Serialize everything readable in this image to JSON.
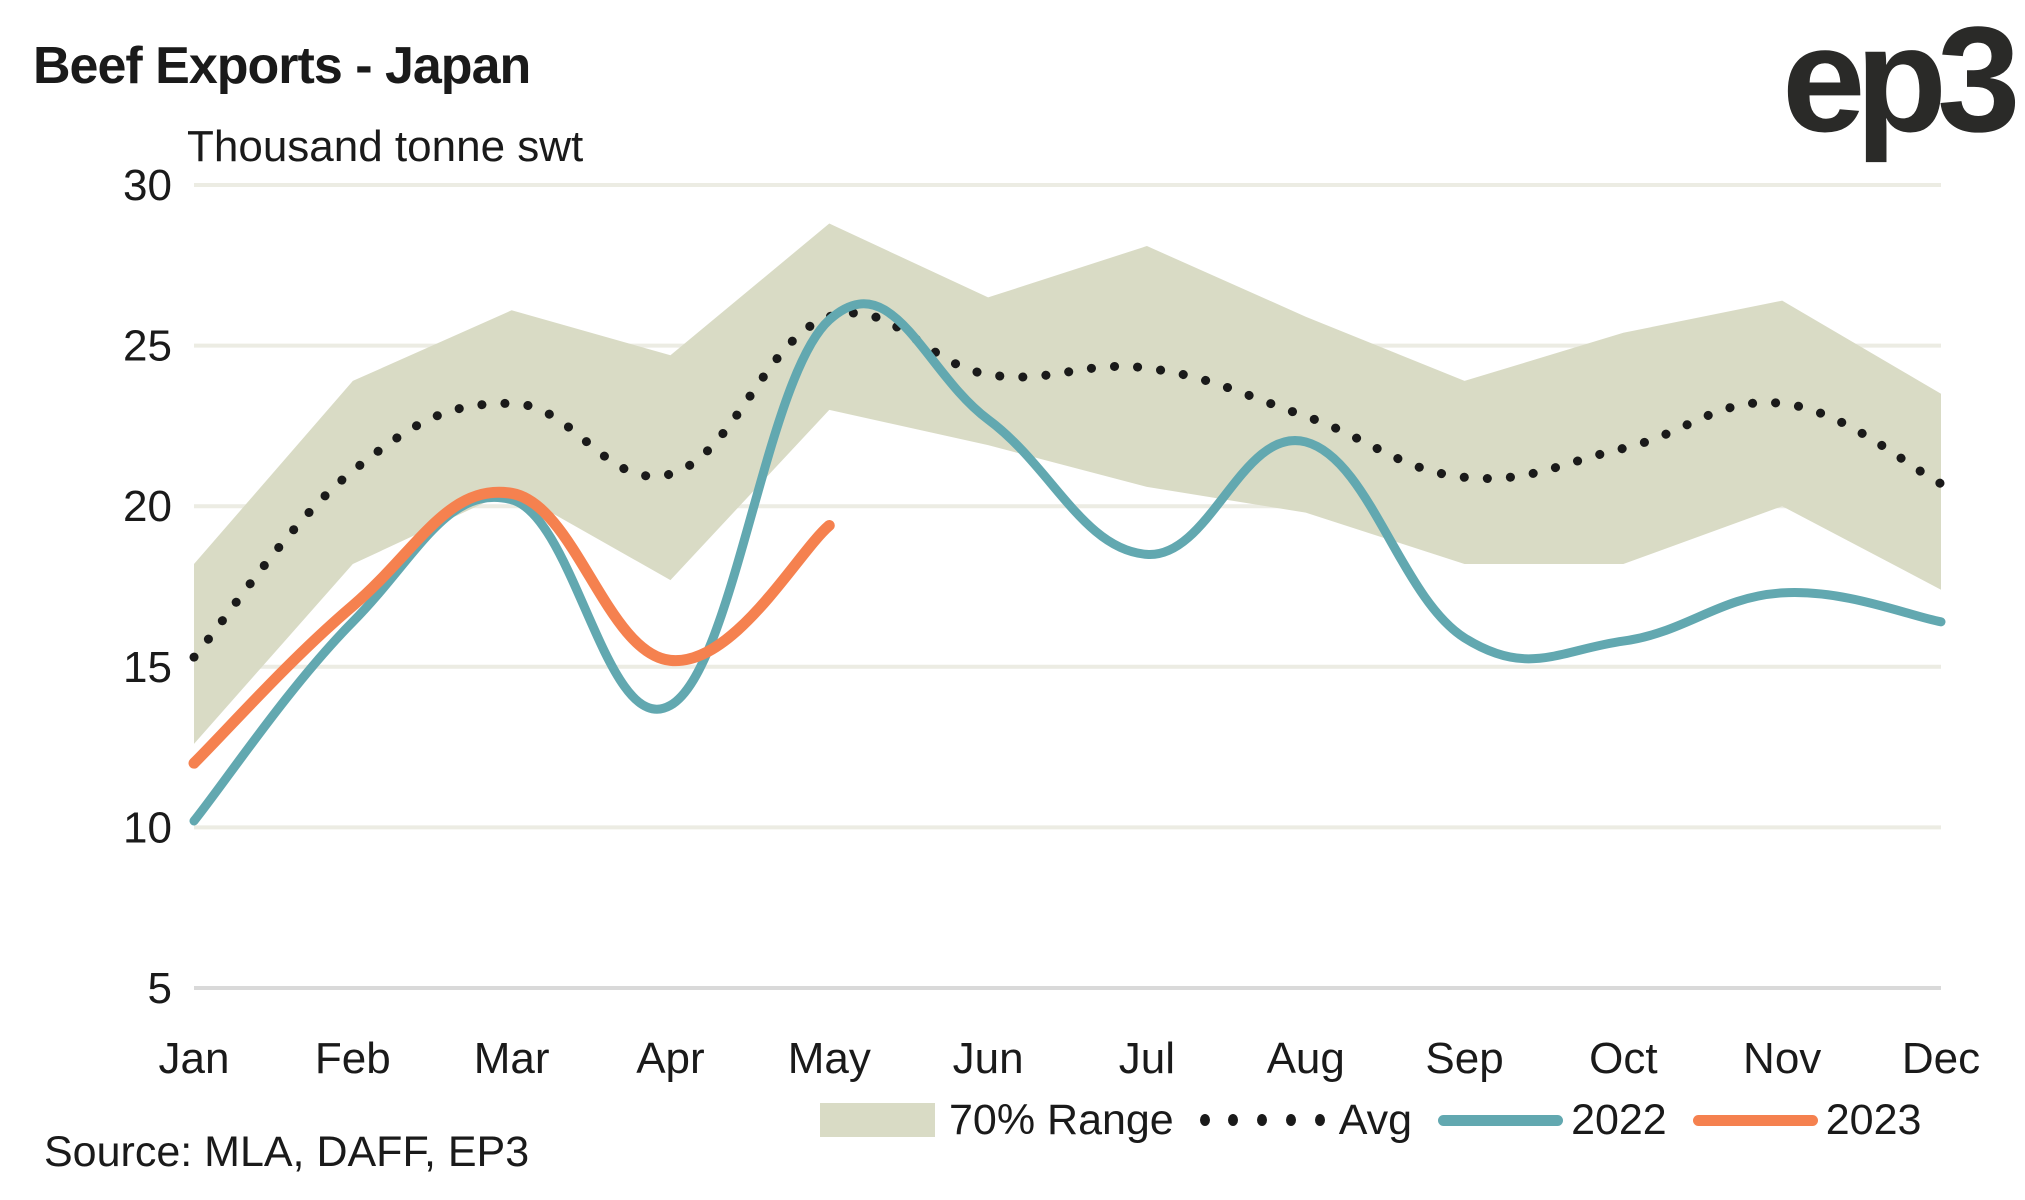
{
  "header": {
    "title": "Beef Exports - Japan",
    "unit_label": "Thousand tonne swt",
    "logo_text": "ep3"
  },
  "footer": {
    "source": "Source: MLA, DAFF, EP3"
  },
  "colors": {
    "range": "#d9dbc5",
    "avg": "#1a1a1a",
    "y2022": "#62a8b0",
    "y2023": "#f5814f",
    "grid": "#ecece3"
  },
  "chart_data": {
    "type": "line",
    "title": "Beef Exports - Japan",
    "ylabel": "Thousand tonne swt",
    "xlabel": "",
    "categories": [
      "Jan",
      "Feb",
      "Mar",
      "Apr",
      "May",
      "Jun",
      "Jul",
      "Aug",
      "Sep",
      "Oct",
      "Nov",
      "Dec"
    ],
    "ylim": [
      5,
      30
    ],
    "yticks": [
      5,
      10,
      15,
      20,
      25,
      30
    ],
    "grid": true,
    "legend_position": "bottom-right",
    "range": {
      "name": "70% Range",
      "upper": [
        18.2,
        23.9,
        26.1,
        24.7,
        28.8,
        26.5,
        28.1,
        25.9,
        23.9,
        25.4,
        26.4,
        23.5
      ],
      "lower": [
        12.6,
        18.2,
        20.5,
        17.7,
        23.0,
        21.9,
        20.6,
        19.8,
        18.2,
        18.2,
        20.0,
        17.4
      ]
    },
    "series": [
      {
        "name": "Avg",
        "style": "dotted",
        "values": [
          15.3,
          21.1,
          23.2,
          21.0,
          25.9,
          24.1,
          24.3,
          22.8,
          20.9,
          21.8,
          23.2,
          20.7
        ]
      },
      {
        "name": "2022",
        "style": "solid",
        "values": [
          10.2,
          16.4,
          20.2,
          13.8,
          25.8,
          22.7,
          18.5,
          22.0,
          15.9,
          15.8,
          17.3,
          16.4
        ]
      },
      {
        "name": "2023",
        "style": "solid",
        "values": [
          12.0,
          16.9,
          20.4,
          15.2,
          19.4,
          null,
          null,
          null,
          null,
          null,
          null,
          null
        ]
      }
    ]
  },
  "legend": {
    "items": [
      {
        "label": "70% Range"
      },
      {
        "label": "Avg"
      },
      {
        "label": "2022"
      },
      {
        "label": "2023"
      }
    ]
  }
}
